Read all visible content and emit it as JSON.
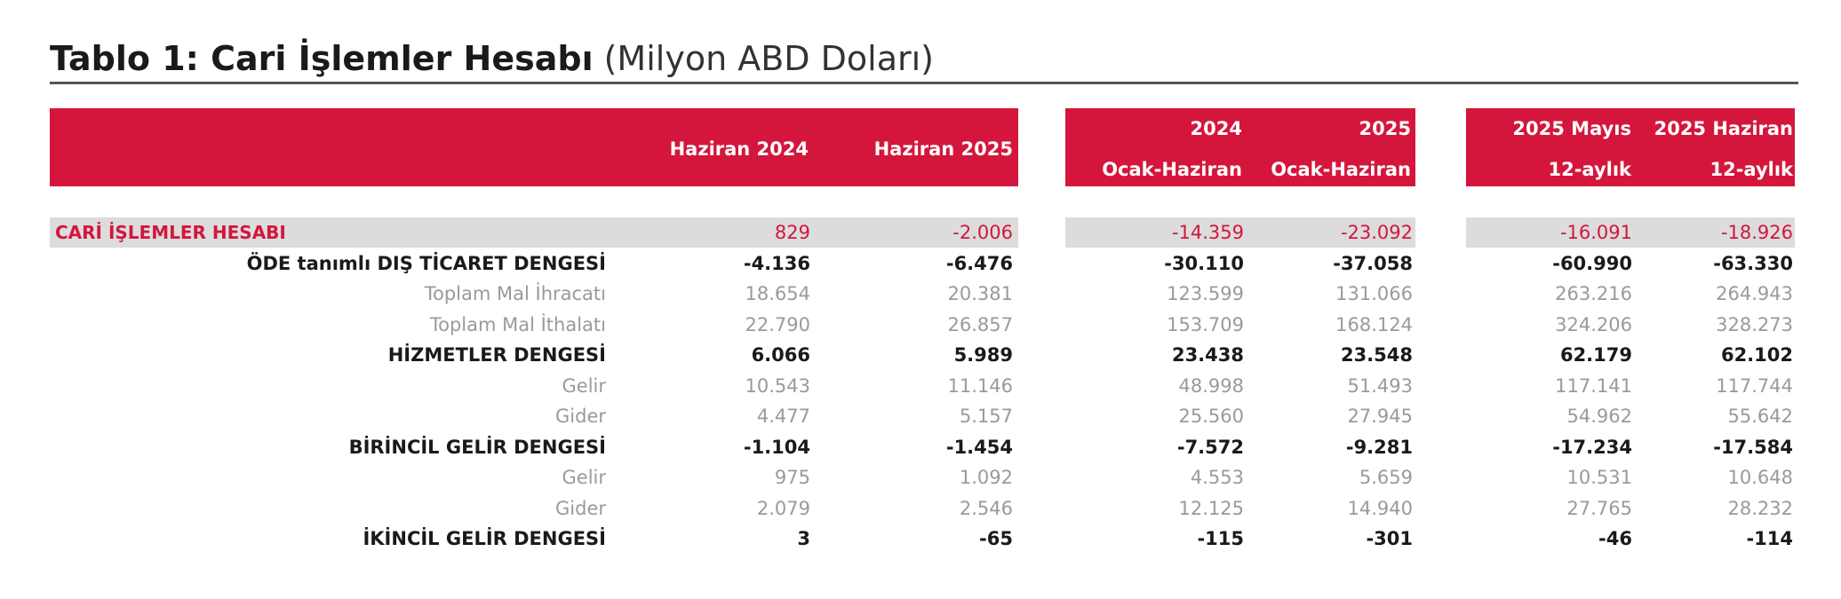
{
  "title": {
    "main": "Tablo 1: Cari İşlemler Hesabı",
    "unit": "(Milyon ABD Doları)"
  },
  "colors": {
    "header_bg": "#d4163c",
    "accent_text": "#d4163c",
    "band_bg": "#dcdcdc",
    "sub_text": "#9a9a9a"
  },
  "header": {
    "col1": "Haziran 2024",
    "col2": "Haziran 2025",
    "col3_top": "2024",
    "col3_bottom": "Ocak-Haziran",
    "col4_top": "2025",
    "col4_bottom": "Ocak-Haziran",
    "col5_top": "2025 Mayıs",
    "col5_bottom": "12-aylık",
    "col6_top": "2025 Haziran",
    "col6_bottom": "12-aylık"
  },
  "rows": [
    {
      "label": "CARİ İŞLEMLER HESABI",
      "style": "cari",
      "values": [
        "829",
        "-2.006",
        "-14.359",
        "-23.092",
        "-16.091",
        "-18.926"
      ]
    },
    {
      "label": "ÖDE tanımlı DIŞ TİCARET DENGESİ",
      "style": "bold",
      "values": [
        "-4.136",
        "-6.476",
        "-30.110",
        "-37.058",
        "-60.990",
        "-63.330"
      ]
    },
    {
      "label": "Toplam Mal İhracatı",
      "style": "light",
      "values": [
        "18.654",
        "20.381",
        "123.599",
        "131.066",
        "263.216",
        "264.943"
      ]
    },
    {
      "label": "Toplam Mal İthalatı",
      "style": "light",
      "values": [
        "22.790",
        "26.857",
        "153.709",
        "168.124",
        "324.206",
        "328.273"
      ]
    },
    {
      "label": "HİZMETLER DENGESİ",
      "style": "bold",
      "values": [
        "6.066",
        "5.989",
        "23.438",
        "23.548",
        "62.179",
        "62.102"
      ]
    },
    {
      "label": "Gelir",
      "style": "light",
      "values": [
        "10.543",
        "11.146",
        "48.998",
        "51.493",
        "117.141",
        "117.744"
      ]
    },
    {
      "label": "Gider",
      "style": "light",
      "values": [
        "4.477",
        "5.157",
        "25.560",
        "27.945",
        "54.962",
        "55.642"
      ]
    },
    {
      "label": "BİRİNCİL GELİR DENGESİ",
      "style": "bold",
      "values": [
        "-1.104",
        "-1.454",
        "-7.572",
        "-9.281",
        "-17.234",
        "-17.584"
      ]
    },
    {
      "label": "Gelir",
      "style": "light",
      "values": [
        "975",
        "1.092",
        "4.553",
        "5.659",
        "10.531",
        "10.648"
      ]
    },
    {
      "label": "Gider",
      "style": "light",
      "values": [
        "2.079",
        "2.546",
        "12.125",
        "14.940",
        "27.765",
        "28.232"
      ]
    },
    {
      "label": "İKİNCİL GELİR DENGESİ",
      "style": "bold",
      "values": [
        "3",
        "-65",
        "-115",
        "-301",
        "-46",
        "-114"
      ]
    }
  ]
}
